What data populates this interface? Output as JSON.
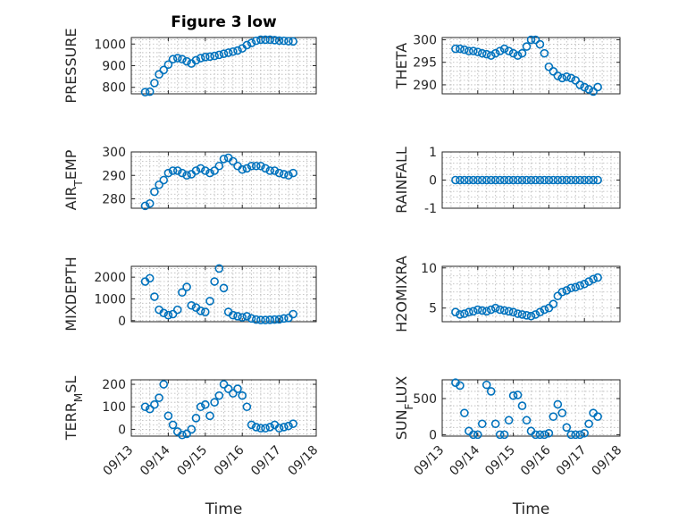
{
  "chart_data": [
    {
      "type": "scatter",
      "title": "Figure 3 low",
      "ylabel": "PRESSURE",
      "ylabel_sub": "",
      "ylim": [
        770,
        1030
      ],
      "yticks": [
        800,
        900,
        1000
      ],
      "yticklabels": [
        "800",
        "900",
        "1000"
      ],
      "x": [
        "09/13 09:00",
        "09/13 12:00",
        "09/13 15:00",
        "09/13 18:00",
        "09/13 21:00",
        "09/14 00:00",
        "09/14 03:00",
        "09/14 06:00",
        "09/14 09:00",
        "09/14 12:00",
        "09/14 15:00",
        "09/14 18:00",
        "09/14 21:00",
        "09/15 00:00",
        "09/15 03:00",
        "09/15 06:00",
        "09/15 09:00",
        "09/15 12:00",
        "09/15 15:00",
        "09/15 18:00",
        "09/15 21:00",
        "09/16 00:00",
        "09/16 03:00",
        "09/16 06:00",
        "09/16 09:00",
        "09/16 12:00",
        "09/16 15:00",
        "09/16 18:00",
        "09/16 21:00",
        "09/17 00:00",
        "09/17 03:00",
        "09/17 06:00",
        "09/17 09:00"
      ],
      "values": [
        778,
        780,
        820,
        860,
        880,
        905,
        930,
        935,
        930,
        920,
        910,
        925,
        935,
        940,
        942,
        945,
        950,
        955,
        960,
        965,
        970,
        980,
        995,
        1005,
        1015,
        1020,
        1020,
        1020,
        1018,
        1016,
        1015,
        1013,
        1012
      ]
    },
    {
      "type": "scatter",
      "ylabel": "THETA",
      "ylabel_sub": "",
      "ylim": [
        288,
        300.5
      ],
      "yticks": [
        290,
        295,
        300
      ],
      "yticklabels": [
        "290",
        "295",
        "300"
      ],
      "x": [
        "09/13 09:00",
        "09/13 12:00",
        "09/13 15:00",
        "09/13 18:00",
        "09/13 21:00",
        "09/14 00:00",
        "09/14 03:00",
        "09/14 06:00",
        "09/14 09:00",
        "09/14 12:00",
        "09/14 15:00",
        "09/14 18:00",
        "09/14 21:00",
        "09/15 00:00",
        "09/15 03:00",
        "09/15 06:00",
        "09/15 09:00",
        "09/15 12:00",
        "09/15 15:00",
        "09/15 18:00",
        "09/15 21:00",
        "09/16 00:00",
        "09/16 03:00",
        "09/16 06:00",
        "09/16 09:00",
        "09/16 12:00",
        "09/16 15:00",
        "09/16 18:00",
        "09/16 21:00",
        "09/17 00:00",
        "09/17 03:00",
        "09/17 06:00",
        "09/17 09:00"
      ],
      "values": [
        298,
        298,
        297.8,
        297.5,
        297.5,
        297.3,
        297,
        296.8,
        296.5,
        297,
        297.5,
        298,
        297.5,
        297,
        296.5,
        297,
        298.5,
        300,
        300,
        299,
        297,
        294,
        293,
        292,
        291.5,
        291.8,
        291.5,
        291,
        290,
        289.5,
        289,
        288.5,
        289.5
      ]
    },
    {
      "type": "scatter",
      "ylabel": "AIR",
      "ylabel_sub": "T",
      "ylabel_rest": "EMP",
      "ylim": [
        276,
        300
      ],
      "yticks": [
        280,
        290,
        300
      ],
      "yticklabels": [
        "280",
        "290",
        "300"
      ],
      "x": [
        "09/13 09:00",
        "09/13 12:00",
        "09/13 15:00",
        "09/13 18:00",
        "09/13 21:00",
        "09/14 00:00",
        "09/14 03:00",
        "09/14 06:00",
        "09/14 09:00",
        "09/14 12:00",
        "09/14 15:00",
        "09/14 18:00",
        "09/14 21:00",
        "09/15 00:00",
        "09/15 03:00",
        "09/15 06:00",
        "09/15 09:00",
        "09/15 12:00",
        "09/15 15:00",
        "09/15 18:00",
        "09/15 21:00",
        "09/16 00:00",
        "09/16 03:00",
        "09/16 06:00",
        "09/16 09:00",
        "09/16 12:00",
        "09/16 15:00",
        "09/16 18:00",
        "09/16 21:00",
        "09/17 00:00",
        "09/17 03:00",
        "09/17 06:00",
        "09/17 09:00"
      ],
      "values": [
        277,
        278,
        283,
        286,
        288,
        291,
        292,
        292,
        291,
        290,
        290.5,
        292,
        293,
        292,
        291,
        292,
        294,
        297,
        297.5,
        296,
        294,
        292.5,
        293,
        294,
        294,
        294,
        293,
        292,
        292,
        291,
        290.5,
        290,
        291
      ]
    },
    {
      "type": "scatter",
      "ylabel": "RAINFALL",
      "ylabel_sub": "",
      "ylim": [
        -1,
        1
      ],
      "yticks": [
        -1,
        0,
        1
      ],
      "yticklabels": [
        "-1",
        "0",
        "1"
      ],
      "x": [
        "09/13 09:00",
        "09/13 12:00",
        "09/13 15:00",
        "09/13 18:00",
        "09/13 21:00",
        "09/14 00:00",
        "09/14 03:00",
        "09/14 06:00",
        "09/14 09:00",
        "09/14 12:00",
        "09/14 15:00",
        "09/14 18:00",
        "09/14 21:00",
        "09/15 00:00",
        "09/15 03:00",
        "09/15 06:00",
        "09/15 09:00",
        "09/15 12:00",
        "09/15 15:00",
        "09/15 18:00",
        "09/15 21:00",
        "09/16 00:00",
        "09/16 03:00",
        "09/16 06:00",
        "09/16 09:00",
        "09/16 12:00",
        "09/16 15:00",
        "09/16 18:00",
        "09/16 21:00",
        "09/17 00:00",
        "09/17 03:00",
        "09/17 06:00",
        "09/17 09:00"
      ],
      "values": [
        0,
        0,
        0,
        0,
        0,
        0,
        0,
        0,
        0,
        0,
        0,
        0,
        0,
        0,
        0,
        0,
        0,
        0,
        0,
        0,
        0,
        0,
        0,
        0,
        0,
        0,
        0,
        0,
        0,
        0,
        0,
        0,
        0
      ]
    },
    {
      "type": "scatter",
      "ylabel": "MIXDEPTH",
      "ylabel_sub": "",
      "ylim": [
        -50,
        2500
      ],
      "yticks": [
        0,
        1000,
        2000
      ],
      "yticklabels": [
        "0",
        "1000",
        "2000"
      ],
      "x": [
        "09/13 09:00",
        "09/13 12:00",
        "09/13 15:00",
        "09/13 18:00",
        "09/13 21:00",
        "09/14 00:00",
        "09/14 03:00",
        "09/14 06:00",
        "09/14 09:00",
        "09/14 12:00",
        "09/14 15:00",
        "09/14 18:00",
        "09/14 21:00",
        "09/15 00:00",
        "09/15 03:00",
        "09/15 06:00",
        "09/15 09:00",
        "09/15 12:00",
        "09/15 15:00",
        "09/15 18:00",
        "09/15 21:00",
        "09/16 00:00",
        "09/16 03:00",
        "09/16 06:00",
        "09/16 09:00",
        "09/16 12:00",
        "09/16 15:00",
        "09/16 18:00",
        "09/16 21:00",
        "09/17 00:00",
        "09/17 03:00",
        "09/17 06:00",
        "09/17 09:00"
      ],
      "values": [
        1800,
        1950,
        1100,
        500,
        350,
        250,
        300,
        500,
        1300,
        1550,
        700,
        600,
        450,
        400,
        900,
        1800,
        2400,
        1500,
        400,
        250,
        200,
        150,
        200,
        100,
        50,
        30,
        30,
        40,
        50,
        60,
        100,
        120,
        300
      ]
    },
    {
      "type": "scatter",
      "ylabel": "H2OMIXRA",
      "ylabel_sub": "",
      "ylim": [
        3.3,
        10.2
      ],
      "yticks": [
        5,
        10
      ],
      "yticklabels": [
        "5",
        "10"
      ],
      "x": [
        "09/13 09:00",
        "09/13 12:00",
        "09/13 15:00",
        "09/13 18:00",
        "09/13 21:00",
        "09/14 00:00",
        "09/14 03:00",
        "09/14 06:00",
        "09/14 09:00",
        "09/14 12:00",
        "09/14 15:00",
        "09/14 18:00",
        "09/14 21:00",
        "09/15 00:00",
        "09/15 03:00",
        "09/15 06:00",
        "09/15 09:00",
        "09/15 12:00",
        "09/15 15:00",
        "09/15 18:00",
        "09/15 21:00",
        "09/16 00:00",
        "09/16 03:00",
        "09/16 06:00",
        "09/16 09:00",
        "09/16 12:00",
        "09/16 15:00",
        "09/16 18:00",
        "09/16 21:00",
        "09/17 00:00",
        "09/17 03:00",
        "09/17 06:00",
        "09/17 09:00"
      ],
      "values": [
        4.5,
        4.2,
        4.3,
        4.5,
        4.6,
        4.8,
        4.7,
        4.6,
        4.8,
        5.0,
        4.8,
        4.7,
        4.6,
        4.5,
        4.3,
        4.2,
        4.1,
        4.0,
        4.2,
        4.5,
        4.8,
        5.0,
        5.5,
        6.5,
        7.0,
        7.2,
        7.5,
        7.6,
        7.8,
        8.0,
        8.3,
        8.6,
        8.8
      ]
    },
    {
      "type": "scatter",
      "ylabel": "TERR",
      "ylabel_sub": "M",
      "ylabel_rest": "SL",
      "ylim": [
        -30,
        220
      ],
      "yticks": [
        0,
        100,
        200
      ],
      "yticklabels": [
        "0",
        "100",
        "200"
      ],
      "x": [
        "09/13 09:00",
        "09/13 12:00",
        "09/13 15:00",
        "09/13 18:00",
        "09/13 21:00",
        "09/14 00:00",
        "09/14 03:00",
        "09/14 06:00",
        "09/14 09:00",
        "09/14 12:00",
        "09/14 15:00",
        "09/14 18:00",
        "09/14 21:00",
        "09/15 00:00",
        "09/15 03:00",
        "09/15 06:00",
        "09/15 09:00",
        "09/15 12:00",
        "09/15 15:00",
        "09/15 18:00",
        "09/15 21:00",
        "09/16 00:00",
        "09/16 03:00",
        "09/16 06:00",
        "09/16 09:00",
        "09/16 12:00",
        "09/16 15:00",
        "09/16 18:00",
        "09/16 21:00",
        "09/17 00:00",
        "09/17 03:00",
        "09/17 06:00",
        "09/17 09:00"
      ],
      "values": [
        100,
        90,
        110,
        140,
        200,
        60,
        20,
        -10,
        -25,
        -20,
        0,
        50,
        100,
        110,
        60,
        120,
        150,
        200,
        180,
        160,
        180,
        150,
        100,
        20,
        10,
        5,
        5,
        10,
        20,
        5,
        10,
        15,
        25
      ]
    },
    {
      "type": "scatter",
      "ylabel": "SUN",
      "ylabel_sub": "F",
      "ylabel_rest": "LUX",
      "ylim": [
        -20,
        760
      ],
      "yticks": [
        0,
        500
      ],
      "yticklabels": [
        "0",
        "500"
      ],
      "x": [
        "09/13 09:00",
        "09/13 12:00",
        "09/13 15:00",
        "09/13 18:00",
        "09/13 21:00",
        "09/14 00:00",
        "09/14 03:00",
        "09/14 06:00",
        "09/14 09:00",
        "09/14 12:00",
        "09/14 15:00",
        "09/14 18:00",
        "09/14 21:00",
        "09/15 00:00",
        "09/15 03:00",
        "09/15 06:00",
        "09/15 09:00",
        "09/15 12:00",
        "09/15 15:00",
        "09/15 18:00",
        "09/15 21:00",
        "09/16 00:00",
        "09/16 03:00",
        "09/16 06:00",
        "09/16 09:00",
        "09/16 12:00",
        "09/16 15:00",
        "09/16 18:00",
        "09/16 21:00",
        "09/17 00:00",
        "09/17 03:00",
        "09/17 06:00",
        "09/17 09:00"
      ],
      "values": [
        720,
        680,
        300,
        50,
        0,
        0,
        150,
        690,
        600,
        150,
        0,
        0,
        200,
        540,
        550,
        400,
        200,
        50,
        0,
        0,
        0,
        20,
        250,
        420,
        300,
        100,
        0,
        0,
        0,
        20,
        150,
        300,
        250
      ]
    }
  ],
  "shared": {
    "xlabel": "Time",
    "xtick_dates": [
      "09/13 00:00",
      "09/14 00:00",
      "09/15 00:00",
      "09/16 00:00",
      "09/17 00:00",
      "09/18 00:00"
    ],
    "xticklabels": [
      "09/13",
      "09/14",
      "09/15",
      "09/16",
      "09/17",
      "09/18"
    ],
    "xlim": [
      "09/13 00:00",
      "09/18 00:00"
    ],
    "grid": "minor dotted",
    "marker_color": "#0072BD"
  }
}
